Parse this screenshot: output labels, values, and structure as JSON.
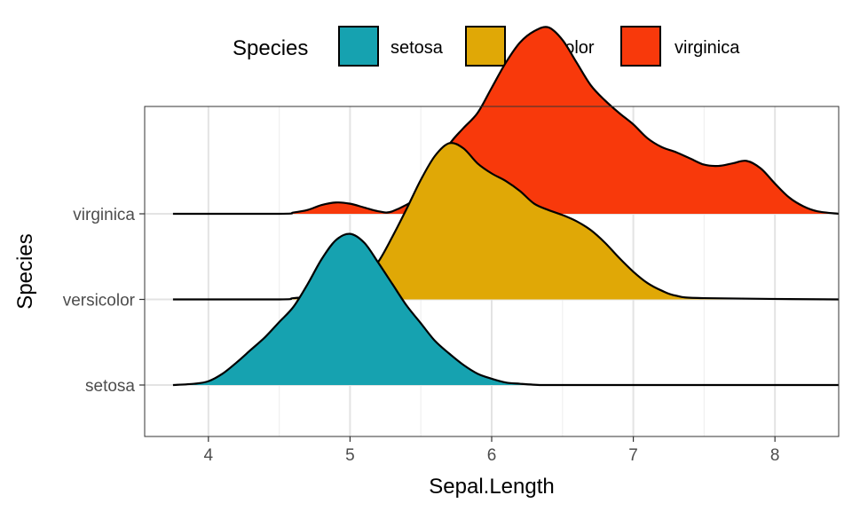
{
  "chart_data": {
    "type": "area",
    "subtype": "ridgeline-density",
    "xlabel": "Sepal.Length",
    "ylabel": "Species",
    "xlim": [
      3.55,
      8.45
    ],
    "x_ticks": [
      4,
      5,
      6,
      7,
      8
    ],
    "y_categories": [
      "setosa",
      "versicolor",
      "virginica"
    ],
    "grid": true,
    "legend": {
      "title": "Species",
      "position": "top",
      "entries": [
        "setosa",
        "versicolor",
        "virginica"
      ]
    },
    "series": [
      {
        "name": "setosa",
        "color": "#16a2b0",
        "x": [
          3.75,
          3.9,
          4.0,
          4.1,
          4.2,
          4.3,
          4.4,
          4.5,
          4.6,
          4.7,
          4.8,
          4.9,
          5.0,
          5.1,
          5.2,
          5.3,
          5.4,
          5.5,
          5.6,
          5.7,
          5.8,
          5.9,
          6.0,
          6.1,
          6.2,
          6.35,
          6.5,
          7.0,
          7.5,
          8.0,
          8.45
        ],
        "density": [
          0.0,
          0.01,
          0.03,
          0.09,
          0.18,
          0.28,
          0.38,
          0.5,
          0.62,
          0.8,
          1.0,
          1.15,
          1.2,
          1.13,
          0.97,
          0.8,
          0.63,
          0.49,
          0.35,
          0.25,
          0.16,
          0.09,
          0.05,
          0.02,
          0.01,
          0.0,
          0.0,
          0.0,
          0.0,
          0.0,
          0.0
        ]
      },
      {
        "name": "versicolor",
        "color": "#e0a806",
        "x": [
          3.75,
          4.5,
          4.6,
          4.8,
          4.9,
          5.0,
          5.1,
          5.2,
          5.3,
          5.4,
          5.5,
          5.6,
          5.7,
          5.8,
          5.9,
          6.0,
          6.1,
          6.2,
          6.3,
          6.4,
          6.5,
          6.6,
          6.7,
          6.8,
          6.9,
          7.0,
          7.1,
          7.2,
          7.3,
          7.5,
          8.45
        ],
        "density": [
          0.0,
          0.0,
          0.01,
          0.03,
          0.06,
          0.1,
          0.18,
          0.3,
          0.5,
          0.72,
          0.95,
          1.14,
          1.24,
          1.2,
          1.08,
          1.0,
          0.94,
          0.86,
          0.76,
          0.71,
          0.67,
          0.62,
          0.55,
          0.45,
          0.33,
          0.22,
          0.13,
          0.07,
          0.03,
          0.01,
          0.0
        ]
      },
      {
        "name": "virginica",
        "color": "#f8390b",
        "x": [
          3.75,
          4.5,
          4.6,
          4.7,
          4.8,
          4.9,
          5.0,
          5.1,
          5.2,
          5.3,
          5.5,
          5.6,
          5.7,
          5.8,
          5.9,
          6.0,
          6.1,
          6.2,
          6.3,
          6.4,
          6.5,
          6.6,
          6.7,
          6.8,
          6.9,
          7.0,
          7.1,
          7.2,
          7.3,
          7.4,
          7.5,
          7.6,
          7.7,
          7.8,
          7.9,
          8.0,
          8.1,
          8.2,
          8.3,
          8.45
        ],
        "density": [
          0.0,
          0.0,
          0.01,
          0.03,
          0.07,
          0.09,
          0.08,
          0.05,
          0.02,
          0.02,
          0.15,
          0.35,
          0.55,
          0.68,
          0.8,
          1.0,
          1.2,
          1.36,
          1.45,
          1.48,
          1.38,
          1.2,
          1.02,
          0.9,
          0.8,
          0.71,
          0.6,
          0.53,
          0.49,
          0.44,
          0.39,
          0.38,
          0.4,
          0.42,
          0.36,
          0.24,
          0.13,
          0.06,
          0.02,
          0.0
        ]
      }
    ]
  }
}
